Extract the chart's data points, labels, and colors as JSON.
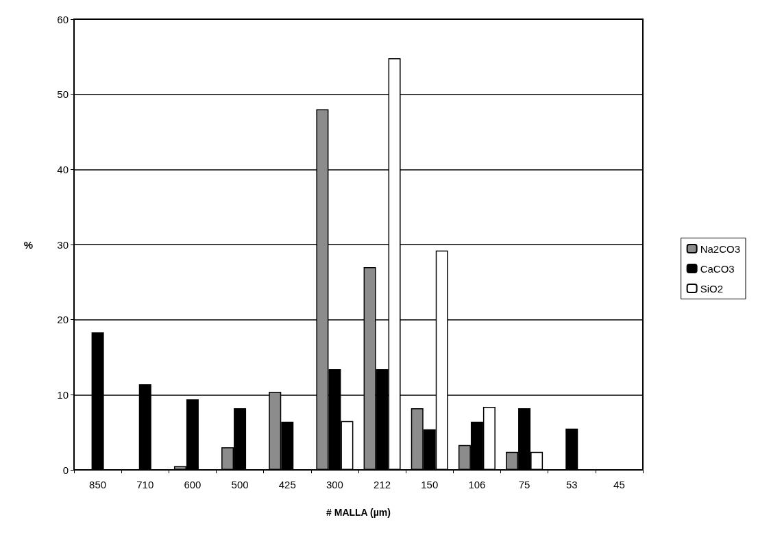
{
  "chart_data": {
    "type": "bar",
    "xlabel": "# MALLA (µm)",
    "ylabel": "%",
    "categories": [
      "850",
      "710",
      "600",
      "500",
      "425",
      "300",
      "212",
      "150",
      "106",
      "75",
      "53",
      "45"
    ],
    "series": [
      {
        "name": "Na2CO3",
        "color": "#8c8c8c",
        "values": [
          0,
          0,
          0.5,
          3,
          10.4,
          48,
          27,
          8.2,
          3.3,
          2.4,
          0,
          0
        ]
      },
      {
        "name": "CaCO3",
        "color": "#000000",
        "values": [
          18.3,
          11.4,
          9.4,
          8.2,
          6.4,
          13.4,
          13.4,
          5.4,
          6.4,
          8.2,
          5.5,
          0
        ]
      },
      {
        "name": "SiO2",
        "color": "#ffffff",
        "values": [
          0,
          0,
          0,
          0,
          0,
          6.5,
          54.8,
          29.2,
          8.4,
          2.4,
          0,
          0
        ]
      }
    ],
    "ylim": [
      0,
      60
    ],
    "yticks": [
      0,
      10,
      20,
      30,
      40,
      50,
      60
    ],
    "grid": "y",
    "legend": "right"
  }
}
